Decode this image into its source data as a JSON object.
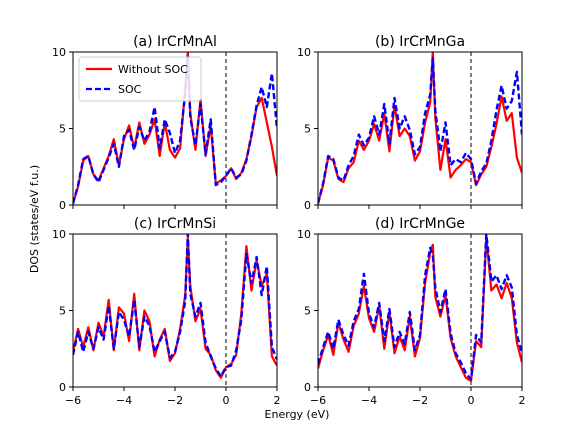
{
  "figure": {
    "xlabel": "Energy (eV)",
    "ylabel": "DOS (states/eV f.u.)",
    "legend": {
      "items": [
        {
          "label": "Without SOC",
          "color": "#ff0000",
          "style": "solid"
        },
        {
          "label": "SOC",
          "color": "#0000ff",
          "style": "dashed"
        }
      ],
      "placement": "upper-left of panel (a)"
    },
    "colors": {
      "without_soc": "#ff0000",
      "soc": "#0000ff",
      "fermi_line": "#000000"
    }
  },
  "chart_data": [
    {
      "type": "line",
      "title": "(a) IrCrMnAl",
      "xlim": [
        -6,
        2
      ],
      "ylim": [
        0,
        10
      ],
      "xticks": [
        "",
        "",
        "",
        "",
        ""
      ],
      "yticks": [
        "0",
        "5",
        "10"
      ],
      "fermi_level": 0,
      "series": [
        {
          "name": "Without SOC",
          "x": [
            -6.0,
            -5.8,
            -5.6,
            -5.4,
            -5.2,
            -5.0,
            -4.8,
            -4.6,
            -4.4,
            -4.2,
            -4.0,
            -3.8,
            -3.6,
            -3.4,
            -3.2,
            -3.0,
            -2.8,
            -2.6,
            -2.4,
            -2.2,
            -2.0,
            -1.8,
            -1.6,
            -1.5,
            -1.4,
            -1.2,
            -1.0,
            -0.8,
            -0.6,
            -0.4,
            -0.2,
            0.0,
            0.2,
            0.4,
            0.6,
            0.8,
            1.0,
            1.2,
            1.4,
            1.6,
            1.8,
            2.0
          ],
          "y": [
            0.1,
            1.2,
            2.9,
            3.2,
            2.0,
            1.6,
            2.4,
            3.2,
            4.3,
            2.6,
            4.3,
            5.2,
            3.7,
            5.4,
            4.0,
            4.6,
            5.6,
            3.2,
            5.4,
            3.6,
            3.1,
            3.7,
            7.6,
            10.0,
            6.0,
            3.6,
            6.9,
            3.2,
            5.2,
            1.4,
            1.6,
            1.9,
            2.4,
            1.7,
            2.1,
            3.0,
            4.5,
            6.4,
            7.0,
            5.4,
            3.8,
            1.9
          ]
        },
        {
          "name": "SOC",
          "x": [
            -6.0,
            -5.8,
            -5.6,
            -5.4,
            -5.2,
            -5.0,
            -4.8,
            -4.6,
            -4.4,
            -4.2,
            -4.0,
            -3.8,
            -3.6,
            -3.4,
            -3.2,
            -3.0,
            -2.8,
            -2.6,
            -2.4,
            -2.2,
            -2.0,
            -1.8,
            -1.6,
            -1.5,
            -1.4,
            -1.2,
            -1.0,
            -0.8,
            -0.6,
            -0.4,
            -0.2,
            0.0,
            0.2,
            0.4,
            0.6,
            0.8,
            1.0,
            1.2,
            1.4,
            1.6,
            1.8,
            2.0
          ],
          "y": [
            0.1,
            1.3,
            3.0,
            3.2,
            2.0,
            1.5,
            2.3,
            3.1,
            4.0,
            2.5,
            4.5,
            4.9,
            3.6,
            5.1,
            4.2,
            4.8,
            6.4,
            3.7,
            5.6,
            4.7,
            3.4,
            4.2,
            7.3,
            9.8,
            5.7,
            3.9,
            6.6,
            3.3,
            5.6,
            1.3,
            1.5,
            1.9,
            2.4,
            1.8,
            2.0,
            2.9,
            4.6,
            6.5,
            7.7,
            6.4,
            8.6,
            5.0
          ]
        }
      ]
    },
    {
      "type": "line",
      "title": "(b) IrCrMnGa",
      "xlim": [
        -6,
        2
      ],
      "ylim": [
        0,
        10
      ],
      "xticks": [
        "",
        "",
        "",
        "",
        ""
      ],
      "yticks": [
        "0",
        "5",
        "10"
      ],
      "fermi_level": 0,
      "series": [
        {
          "name": "Without SOC",
          "x": [
            -6.0,
            -5.8,
            -5.6,
            -5.4,
            -5.2,
            -5.0,
            -4.8,
            -4.6,
            -4.4,
            -4.2,
            -4.0,
            -3.8,
            -3.6,
            -3.4,
            -3.2,
            -3.0,
            -2.8,
            -2.6,
            -2.4,
            -2.2,
            -2.0,
            -1.8,
            -1.6,
            -1.5,
            -1.4,
            -1.2,
            -1.0,
            -0.8,
            -0.6,
            -0.4,
            -0.2,
            0.0,
            0.2,
            0.4,
            0.6,
            0.8,
            1.0,
            1.2,
            1.4,
            1.6,
            1.8,
            2.0
          ],
          "y": [
            0.1,
            1.3,
            3.1,
            2.9,
            1.7,
            1.5,
            2.4,
            2.8,
            4.2,
            3.6,
            4.2,
            5.3,
            4.2,
            6.0,
            3.5,
            6.5,
            4.5,
            5.0,
            4.5,
            2.9,
            3.5,
            5.4,
            6.7,
            10.0,
            5.7,
            2.3,
            4.3,
            1.8,
            2.3,
            2.6,
            3.0,
            2.8,
            1.3,
            2.0,
            2.5,
            3.8,
            5.3,
            7.1,
            5.5,
            6.0,
            3.1,
            2.1
          ]
        },
        {
          "name": "SOC",
          "x": [
            -6.0,
            -5.8,
            -5.6,
            -5.4,
            -5.2,
            -5.0,
            -4.8,
            -4.6,
            -4.4,
            -4.2,
            -4.0,
            -3.8,
            -3.6,
            -3.4,
            -3.2,
            -3.0,
            -2.8,
            -2.6,
            -2.4,
            -2.2,
            -2.0,
            -1.8,
            -1.6,
            -1.5,
            -1.4,
            -1.2,
            -1.0,
            -0.8,
            -0.6,
            -0.4,
            -0.2,
            0.0,
            0.2,
            0.4,
            0.6,
            0.8,
            1.0,
            1.2,
            1.4,
            1.6,
            1.8,
            2.0
          ],
          "y": [
            0.1,
            1.4,
            3.2,
            3.0,
            1.8,
            1.6,
            2.6,
            3.2,
            4.6,
            3.9,
            4.4,
            5.8,
            4.6,
            6.6,
            4.0,
            7.0,
            5.0,
            5.8,
            4.9,
            3.3,
            3.8,
            6.0,
            7.2,
            9.6,
            6.2,
            3.5,
            5.4,
            2.6,
            3.0,
            2.8,
            3.4,
            3.0,
            1.4,
            2.2,
            2.7,
            4.2,
            6.2,
            7.8,
            6.3,
            6.8,
            8.7,
            4.6
          ]
        }
      ]
    },
    {
      "type": "line",
      "title": "(c) IrCrMnSi",
      "xlim": [
        -6,
        2
      ],
      "ylim": [
        0,
        10
      ],
      "xticks": [
        "−6",
        "−4",
        "−2",
        "0",
        "2"
      ],
      "yticks": [
        "0",
        "5",
        "10"
      ],
      "fermi_level": 0,
      "series": [
        {
          "name": "Without SOC",
          "x": [
            -6.0,
            -5.8,
            -5.6,
            -5.4,
            -5.2,
            -5.0,
            -4.8,
            -4.6,
            -4.4,
            -4.2,
            -4.0,
            -3.8,
            -3.6,
            -3.4,
            -3.2,
            -3.0,
            -2.8,
            -2.6,
            -2.4,
            -2.2,
            -2.0,
            -1.8,
            -1.6,
            -1.5,
            -1.4,
            -1.2,
            -1.0,
            -0.8,
            -0.6,
            -0.4,
            -0.2,
            0.0,
            0.2,
            0.4,
            0.6,
            0.8,
            1.0,
            1.2,
            1.4,
            1.6,
            1.8,
            2.0
          ],
          "y": [
            2.3,
            3.8,
            2.6,
            3.9,
            2.4,
            4.2,
            3.3,
            5.7,
            2.4,
            5.2,
            4.8,
            3.0,
            6.1,
            2.4,
            5.0,
            4.3,
            2.0,
            3.1,
            3.8,
            1.7,
            2.2,
            3.8,
            6.0,
            9.7,
            6.6,
            4.3,
            5.1,
            2.5,
            2.1,
            1.1,
            0.6,
            1.3,
            1.5,
            2.1,
            4.8,
            9.2,
            6.3,
            8.3,
            6.6,
            7.4,
            2.0,
            1.4
          ]
        },
        {
          "name": "SOC",
          "x": [
            -6.0,
            -5.8,
            -5.6,
            -5.4,
            -5.2,
            -5.0,
            -4.8,
            -4.6,
            -4.4,
            -4.2,
            -4.0,
            -3.8,
            -3.6,
            -3.4,
            -3.2,
            -3.0,
            -2.8,
            -2.6,
            -2.4,
            -2.2,
            -2.0,
            -1.8,
            -1.6,
            -1.5,
            -1.4,
            -1.2,
            -1.0,
            -0.8,
            -0.6,
            -0.4,
            -0.2,
            0.0,
            0.2,
            0.4,
            0.6,
            0.8,
            1.0,
            1.2,
            1.4,
            1.6,
            1.8,
            2.0
          ],
          "y": [
            2.1,
            3.6,
            2.3,
            3.6,
            2.5,
            3.9,
            3.1,
            5.3,
            2.5,
            4.9,
            4.4,
            3.3,
            5.7,
            2.6,
            4.6,
            4.0,
            2.3,
            3.0,
            3.6,
            1.9,
            2.3,
            3.6,
            5.6,
            10.0,
            6.1,
            4.6,
            5.5,
            2.9,
            2.0,
            1.2,
            0.7,
            1.3,
            1.4,
            2.4,
            4.4,
            8.7,
            6.8,
            8.5,
            6.0,
            7.9,
            2.6,
            1.8
          ]
        }
      ]
    },
    {
      "type": "line",
      "title": "(d) IrCrMnGe",
      "xlim": [
        -6,
        2
      ],
      "ylim": [
        0,
        10
      ],
      "xticks": [
        "−6",
        "−4",
        "−2",
        "0",
        "2"
      ],
      "yticks": [
        "0",
        "5",
        "10"
      ],
      "fermi_level": 0,
      "series": [
        {
          "name": "Without SOC",
          "x": [
            -6.0,
            -5.8,
            -5.6,
            -5.4,
            -5.2,
            -5.0,
            -4.8,
            -4.6,
            -4.4,
            -4.2,
            -4.0,
            -3.8,
            -3.6,
            -3.4,
            -3.2,
            -3.0,
            -2.8,
            -2.6,
            -2.4,
            -2.2,
            -2.0,
            -1.8,
            -1.6,
            -1.5,
            -1.4,
            -1.2,
            -1.0,
            -0.8,
            -0.6,
            -0.4,
            -0.2,
            0.0,
            0.2,
            0.4,
            0.6,
            0.8,
            1.0,
            1.2,
            1.4,
            1.6,
            1.8,
            2.0
          ],
          "y": [
            1.2,
            2.4,
            3.4,
            2.1,
            4.2,
            3.1,
            2.3,
            4.0,
            4.8,
            6.6,
            4.5,
            3.6,
            5.3,
            2.5,
            4.9,
            2.2,
            3.3,
            2.4,
            4.6,
            2.0,
            3.2,
            6.8,
            8.8,
            9.3,
            5.9,
            4.6,
            6.0,
            3.2,
            2.0,
            1.3,
            0.6,
            0.4,
            3.0,
            2.6,
            9.8,
            6.3,
            6.7,
            5.8,
            6.8,
            5.8,
            2.9,
            1.6
          ]
        },
        {
          "name": "SOC",
          "x": [
            -6.0,
            -5.8,
            -5.6,
            -5.4,
            -5.2,
            -5.0,
            -4.8,
            -4.6,
            -4.4,
            -4.2,
            -4.0,
            -3.8,
            -3.6,
            -3.4,
            -3.2,
            -3.0,
            -2.8,
            -2.6,
            -2.4,
            -2.2,
            -2.0,
            -1.8,
            -1.6,
            -1.5,
            -1.4,
            -1.2,
            -1.0,
            -0.8,
            -0.6,
            -0.4,
            -0.2,
            0.0,
            0.2,
            0.4,
            0.6,
            0.8,
            1.0,
            1.2,
            1.4,
            1.6,
            1.8,
            2.0
          ],
          "y": [
            1.5,
            2.6,
            3.6,
            2.5,
            4.4,
            3.4,
            2.7,
            4.3,
            5.1,
            7.4,
            4.8,
            3.9,
            5.5,
            3.0,
            5.1,
            2.6,
            3.6,
            2.8,
            4.9,
            2.4,
            3.4,
            7.3,
            9.1,
            8.6,
            6.5,
            4.9,
            6.4,
            3.5,
            2.2,
            1.6,
            0.9,
            0.5,
            3.4,
            2.9,
            10.0,
            6.9,
            7.3,
            6.4,
            7.3,
            6.5,
            3.4,
            2.2
          ]
        }
      ]
    }
  ]
}
